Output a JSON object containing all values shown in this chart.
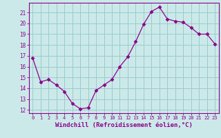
{
  "x": [
    0,
    1,
    2,
    3,
    4,
    5,
    6,
    7,
    8,
    9,
    10,
    11,
    12,
    13,
    14,
    15,
    16,
    17,
    18,
    19,
    20,
    21,
    22,
    23
  ],
  "y": [
    16.8,
    14.6,
    14.8,
    14.3,
    13.7,
    12.6,
    12.1,
    12.2,
    13.8,
    14.3,
    14.8,
    16.0,
    16.9,
    18.3,
    19.9,
    21.1,
    21.5,
    20.4,
    20.2,
    20.1,
    19.6,
    19.0,
    19.0,
    18.1
  ],
  "line_color": "#8B008B",
  "marker": "D",
  "marker_size": 2.5,
  "bg_color": "#cce9e9",
  "grid_color": "#99cccc",
  "axis_color": "#8B008B",
  "tick_color": "#8B008B",
  "xlabel": "Windchill (Refroidissement éolien,°C)",
  "xlabel_fontsize": 6.5,
  "ylabel_ticks": [
    12,
    13,
    14,
    15,
    16,
    17,
    18,
    19,
    20,
    21
  ],
  "xlim": [
    -0.5,
    23.5
  ],
  "ylim": [
    11.7,
    21.9
  ],
  "font_color": "#8B008B"
}
